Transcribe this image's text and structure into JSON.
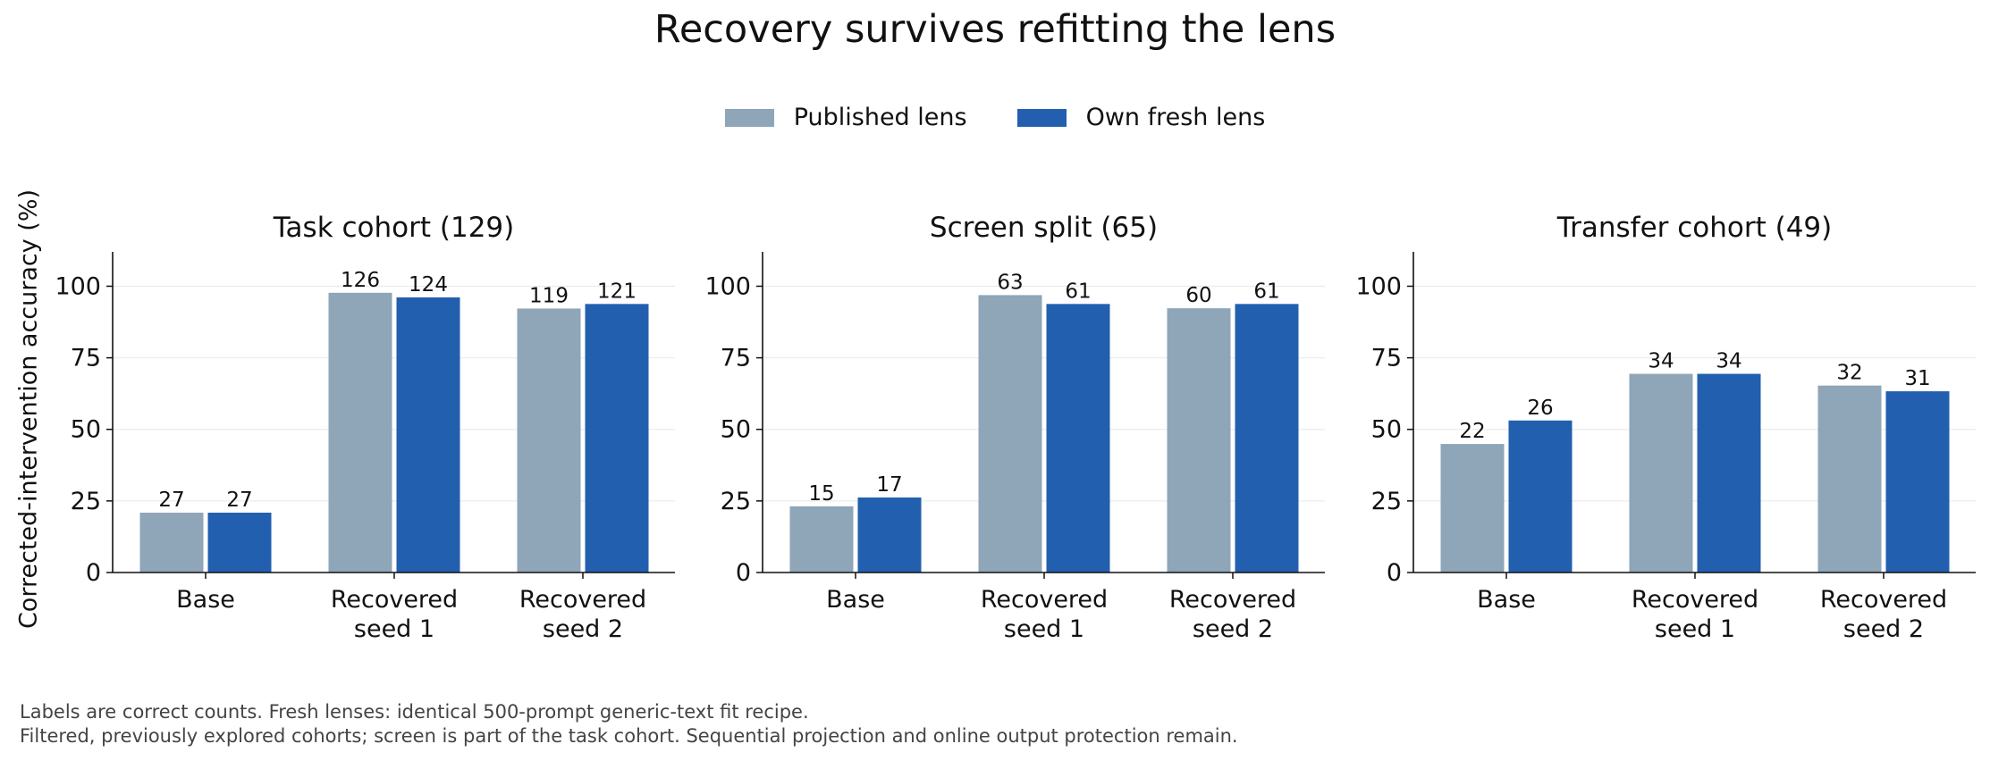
{
  "title": "Recovery survives refitting the lens",
  "ylabel": "Corrected-intervention accuracy (%)",
  "legend": [
    {
      "label": "Published lens",
      "color": "#8fa5b8"
    },
    {
      "label": "Own fresh lens",
      "color": "#235faf"
    }
  ],
  "footnote": {
    "line1": "Labels are correct counts. Fresh lenses: identical 500-prompt generic-text fit recipe.",
    "line2": "Filtered, previously explored cohorts; screen is part of the task cohort. Sequential projection and online output protection remain."
  },
  "chart_data": [
    {
      "type": "bar",
      "title": "Task cohort (129)",
      "categories": [
        "Base",
        "Recovered\nseed 1",
        "Recovered\nseed 2"
      ],
      "ylim": [
        0,
        112
      ],
      "yticks": [
        0,
        25,
        50,
        75,
        100
      ],
      "grid": true,
      "series": [
        {
          "name": "Published lens",
          "values": [
            20.9,
            97.7,
            92.2
          ],
          "labels": [
            "27",
            "126",
            "119"
          ]
        },
        {
          "name": "Own fresh lens",
          "values": [
            20.9,
            96.1,
            93.8
          ],
          "labels": [
            "27",
            "124",
            "121"
          ]
        }
      ]
    },
    {
      "type": "bar",
      "title": "Screen split (65)",
      "categories": [
        "Base",
        "Recovered\nseed 1",
        "Recovered\nseed 2"
      ],
      "ylim": [
        0,
        112
      ],
      "yticks": [
        0,
        25,
        50,
        75,
        100
      ],
      "grid": true,
      "series": [
        {
          "name": "Published lens",
          "values": [
            23.1,
            96.9,
            92.3
          ],
          "labels": [
            "15",
            "63",
            "60"
          ]
        },
        {
          "name": "Own fresh lens",
          "values": [
            26.2,
            93.8,
            93.8
          ],
          "labels": [
            "17",
            "61",
            "61"
          ]
        }
      ]
    },
    {
      "type": "bar",
      "title": "Transfer cohort (49)",
      "categories": [
        "Base",
        "Recovered\nseed 1",
        "Recovered\nseed 2"
      ],
      "ylim": [
        0,
        112
      ],
      "yticks": [
        0,
        25,
        50,
        75,
        100
      ],
      "grid": true,
      "series": [
        {
          "name": "Published lens",
          "values": [
            44.9,
            69.4,
            65.3
          ],
          "labels": [
            "22",
            "34",
            "32"
          ]
        },
        {
          "name": "Own fresh lens",
          "values": [
            53.1,
            69.4,
            63.3
          ],
          "labels": [
            "26",
            "34",
            "31"
          ]
        }
      ]
    }
  ]
}
